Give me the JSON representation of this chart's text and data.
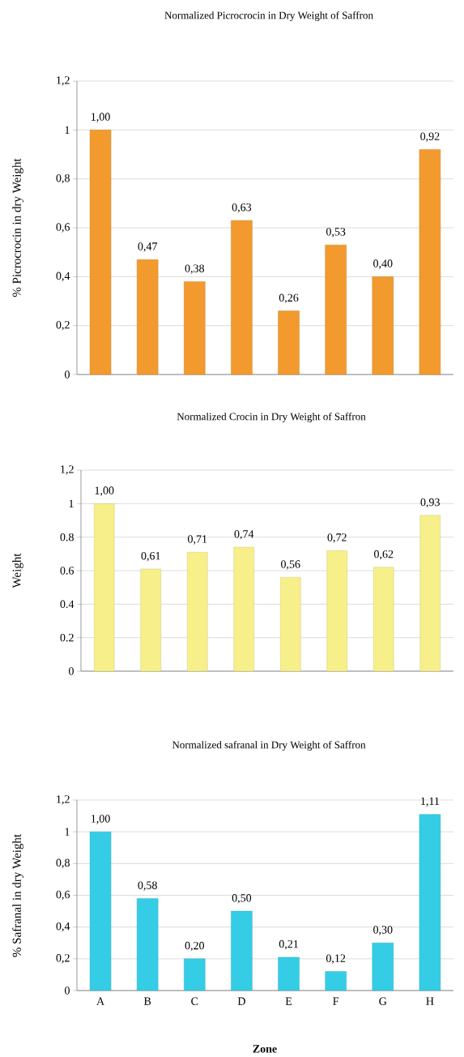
{
  "chart_data": [
    {
      "type": "bar",
      "title": "Normalized Picrocrocin in Dry Weight of Saffron",
      "ylabel": "% Picrocrocin in dry Weight",
      "categories": [
        null,
        null,
        null,
        null,
        null,
        null,
        null,
        null
      ],
      "values": [
        1.0,
        0.47,
        0.38,
        0.63,
        0.26,
        0.53,
        0.4,
        0.92
      ],
      "value_labels": [
        "1,00",
        "0,47",
        "0,38",
        "0,63",
        "0,26",
        "0,53",
        "0,40",
        "0,92"
      ],
      "color": "#f29a2e",
      "ylim": [
        0,
        1.2
      ],
      "yticks": [
        0,
        {
          "value": 0.2,
          "label": "0,2"
        },
        {
          "value": 0.4,
          "label": "0,4"
        },
        {
          "value": 0.6,
          "label": "0,6"
        },
        {
          "value": 0.8,
          "label": "0,8"
        },
        1,
        {
          "value": 1.2,
          "label": "1,2"
        }
      ],
      "grid": "y",
      "tick_labels": "y"
    },
    {
      "type": "bar",
      "title": "Normalized Crocin in Dry Weight of Saffron",
      "ylabel": "Weight",
      "categories": [
        null,
        null,
        null,
        null,
        null,
        null,
        null,
        null
      ],
      "values": [
        1.0,
        0.61,
        0.71,
        0.74,
        0.56,
        0.72,
        0.62,
        0.93
      ],
      "value_labels": [
        "1,00",
        "0,61",
        "0,71",
        "0,74",
        "0,56",
        "0,72",
        "0,62",
        "0,93"
      ],
      "color": "#f7ef8a",
      "ylim": [
        0,
        1.2
      ],
      "yticks": [
        0,
        {
          "value": 0.2,
          "label": "0.2"
        },
        {
          "value": 0.4,
          "label": "0.4"
        },
        {
          "value": 0.6,
          "label": "0.6"
        },
        {
          "value": 0.8,
          "label": "0.8"
        },
        1,
        {
          "value": 1.2,
          "label": "1,2"
        }
      ],
      "grid": "y",
      "tick_labels": "y"
    },
    {
      "type": "bar",
      "title": "Normalized safranal in Dry Weight of Saffron",
      "ylabel": "% Safranal in dry Weight",
      "xlabel": "Zone",
      "categories": [
        "A",
        "B",
        "C",
        "D",
        "E",
        "F",
        "G",
        "H"
      ],
      "values": [
        1.0,
        0.58,
        0.2,
        0.5,
        0.21,
        0.12,
        0.3,
        1.11
      ],
      "value_labels": [
        "1,00",
        "0,58",
        "0,20",
        "0,50",
        "0,21",
        "0,12",
        "0,30",
        "1,11"
      ],
      "color": "#35cde6",
      "ylim": [
        0,
        1.2
      ],
      "yticks": [
        0,
        {
          "value": 0.2,
          "label": "0,2"
        },
        {
          "value": 0.4,
          "label": "0,4"
        },
        {
          "value": 0.6,
          "label": "0,6"
        },
        {
          "value": 0.8,
          "label": "0,8"
        },
        1,
        {
          "value": 1.2,
          "label": "1,2"
        }
      ],
      "grid": "y"
    }
  ]
}
